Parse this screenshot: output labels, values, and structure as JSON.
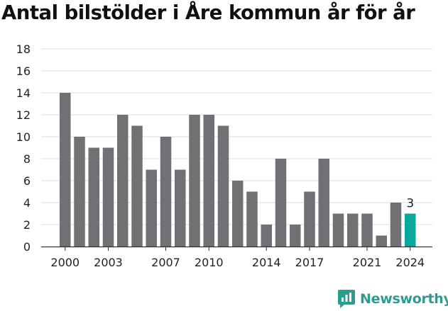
{
  "chart_data": {
    "type": "bar",
    "title": "Antal bilstölder i Åre kommun år för år",
    "xlabel": "",
    "ylabel": "",
    "ylim": [
      0,
      18
    ],
    "yticks": [
      0,
      2,
      4,
      6,
      8,
      10,
      12,
      14,
      16,
      18
    ],
    "grid": true,
    "legend": "none",
    "categories": [
      2000,
      2001,
      2002,
      2003,
      2004,
      2005,
      2006,
      2007,
      2008,
      2009,
      2010,
      2011,
      2012,
      2013,
      2014,
      2015,
      2016,
      2017,
      2018,
      2019,
      2020,
      2021,
      2022,
      2023,
      2024
    ],
    "values": [
      14,
      10,
      9,
      9,
      12,
      11,
      7,
      10,
      7,
      12,
      12,
      11,
      6,
      5,
      2,
      8,
      2,
      5,
      8,
      3,
      3,
      3,
      1,
      4,
      3
    ],
    "xtick_labels": [
      "2000",
      "2003",
      "2007",
      "2010",
      "2014",
      "2017",
      "2021",
      "2024"
    ],
    "highlight": {
      "category": 2024,
      "label": "3"
    },
    "colors": {
      "bar": "#717075",
      "highlight": "#0aa89e",
      "grid": "#dddddd",
      "axis": "#333333"
    }
  },
  "brand": {
    "name": "Newsworthy",
    "icon": "chart-chat-icon",
    "color": "#2a9d8f"
  }
}
